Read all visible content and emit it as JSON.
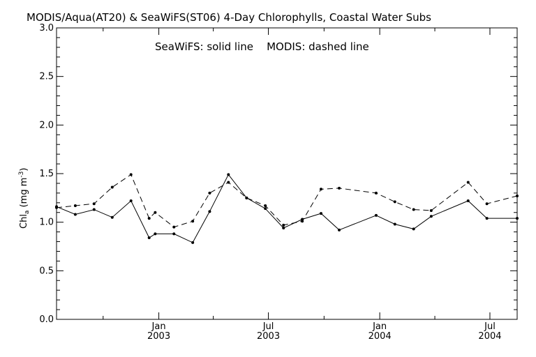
{
  "chart_data": {
    "type": "line",
    "title": "MODIS/Aqua(AT20) & SeaWiFS(ST06) 4-Day Chlorophylls, Coastal Water Subs",
    "subtitle": "SeaWiFS: solid line    MODIS: dashed line",
    "ylabel": {
      "prefix": "Chl",
      "subscript": "a",
      "unit_open": " (mg m",
      "superscript": "-3",
      "unit_close": ")"
    },
    "xlabel": "",
    "x_axis": {
      "type": "date",
      "range": [
        "2002-07-16",
        "2004-08-15"
      ],
      "major_ticks": [
        {
          "date": "2003-01-01",
          "month": "Jan",
          "year": "2003"
        },
        {
          "date": "2003-07-01",
          "month": "Jul",
          "year": "2003"
        },
        {
          "date": "2004-01-01",
          "month": "Jan",
          "year": "2004"
        },
        {
          "date": "2004-07-01",
          "month": "Jul",
          "year": "2004"
        }
      ],
      "minor_ticks": [
        "2002-10-01",
        "2003-04-01",
        "2003-10-01",
        "2004-04-01"
      ]
    },
    "y_axis": {
      "range": [
        0,
        3.0
      ],
      "major_ticks": [
        "0.0",
        "0.5",
        "1.0",
        "1.5",
        "2.0",
        "2.5",
        "3.0"
      ],
      "minor_step": 0.1
    },
    "grid": false,
    "series": [
      {
        "name": "SeaWiFS",
        "style": "solid",
        "color": "#000000",
        "points": [
          [
            "2002-07-16",
            1.16
          ],
          [
            "2002-08-16",
            1.08
          ],
          [
            "2002-09-16",
            1.13
          ],
          [
            "2002-10-16",
            1.05
          ],
          [
            "2002-11-16",
            1.22
          ],
          [
            "2002-12-16",
            0.84
          ],
          [
            "2002-12-26",
            0.88
          ],
          [
            "2003-01-26",
            0.88
          ],
          [
            "2003-02-26",
            0.79
          ],
          [
            "2003-03-26",
            1.11
          ],
          [
            "2003-04-26",
            1.49
          ],
          [
            "2003-05-26",
            1.25
          ],
          [
            "2003-06-26",
            1.14
          ],
          [
            "2003-07-26",
            0.94
          ],
          [
            "2003-08-26",
            1.03
          ],
          [
            "2003-09-26",
            1.09
          ],
          [
            "2003-10-26",
            0.92
          ],
          [
            "2003-12-26",
            1.07
          ],
          [
            "2004-01-26",
            0.98
          ],
          [
            "2004-02-26",
            0.93
          ],
          [
            "2004-03-26",
            1.06
          ],
          [
            "2004-05-26",
            1.22
          ],
          [
            "2004-06-26",
            1.04
          ],
          [
            "2004-08-15",
            1.04
          ]
        ]
      },
      {
        "name": "MODIS",
        "style": "dashed",
        "color": "#000000",
        "points": [
          [
            "2002-07-16",
            1.15
          ],
          [
            "2002-08-16",
            1.17
          ],
          [
            "2002-09-16",
            1.19
          ],
          [
            "2002-10-16",
            1.36
          ],
          [
            "2002-11-16",
            1.49
          ],
          [
            "2002-12-16",
            1.04
          ],
          [
            "2002-12-26",
            1.1
          ],
          [
            "2003-01-26",
            0.95
          ],
          [
            "2003-02-26",
            1.01
          ],
          [
            "2003-03-26",
            1.3
          ],
          [
            "2003-04-26",
            1.41
          ],
          [
            "2003-05-26",
            1.25
          ],
          [
            "2003-06-26",
            1.17
          ],
          [
            "2003-07-26",
            0.97
          ],
          [
            "2003-08-26",
            1.01
          ],
          [
            "2003-09-26",
            1.34
          ],
          [
            "2003-10-26",
            1.35
          ],
          [
            "2003-12-26",
            1.3
          ],
          [
            "2004-01-26",
            1.21
          ],
          [
            "2004-02-26",
            1.13
          ],
          [
            "2004-03-26",
            1.12
          ],
          [
            "2004-05-26",
            1.41
          ],
          [
            "2004-06-26",
            1.19
          ],
          [
            "2004-08-15",
            1.27
          ]
        ]
      }
    ]
  }
}
